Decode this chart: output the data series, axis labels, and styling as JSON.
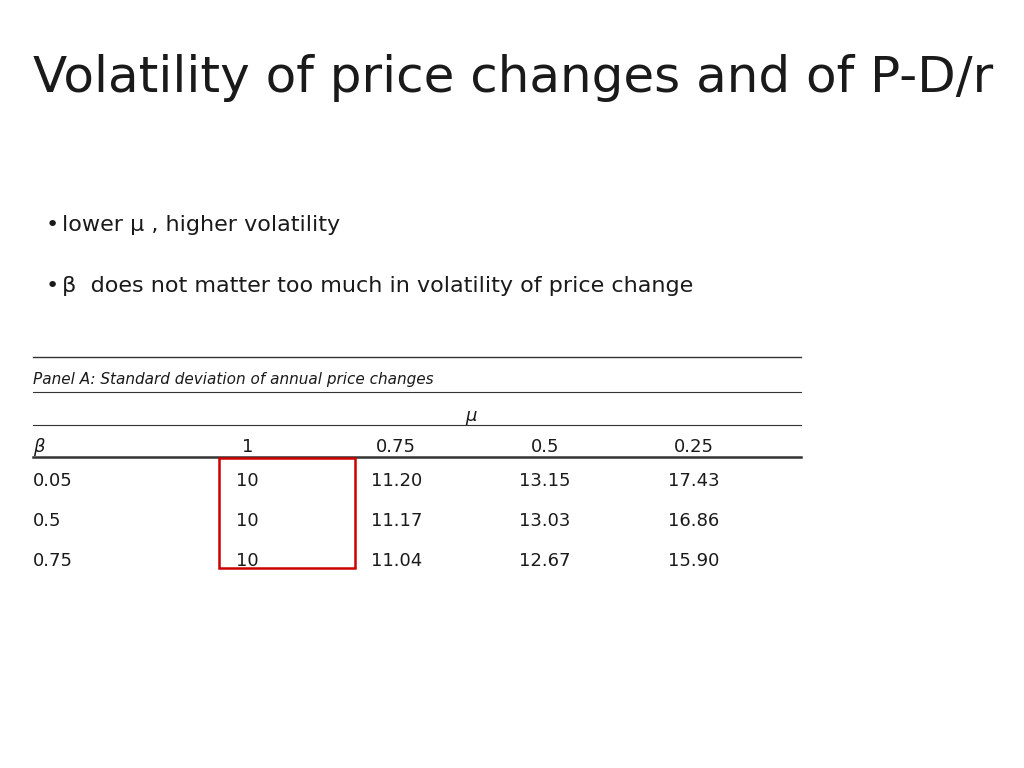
{
  "title": "Volatility of price changes and of P-D/r",
  "bullets": [
    "lower μ , higher volatility",
    "β  does not matter too much in volatility of price change"
  ],
  "panel_label": "Panel A: Standard deviation of annual price changes",
  "col_header_group": "μ",
  "col_headers": [
    "β",
    "1",
    "0.75",
    "0.5",
    "0.25"
  ],
  "rows": [
    [
      "0.05",
      "10",
      "11.20",
      "13.15",
      "17.43"
    ],
    [
      "0.5",
      "10",
      "11.17",
      "13.03",
      "16.86"
    ],
    [
      "0.75",
      "10",
      "11.04",
      "12.67",
      "15.90"
    ]
  ],
  "highlight_col": 1,
  "highlight_color": "#cc0000",
  "background_color": "#ffffff",
  "text_color": "#1a1a1a",
  "title_fontsize": 36,
  "bullet_fontsize": 16,
  "table_fontsize": 13,
  "panel_fontsize": 11
}
